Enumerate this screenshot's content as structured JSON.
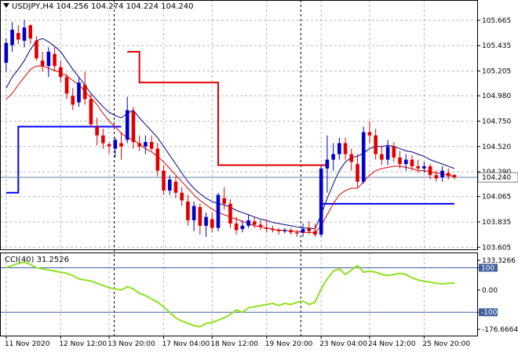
{
  "header": {
    "symbol": "USDJPY,H4",
    "open": "104.256",
    "high": "104.274",
    "low": "104.224",
    "close": "104.240"
  },
  "colors": {
    "bull_candle": "#0000c8",
    "bear_candle": "#e00000",
    "ma_fast": "#000080",
    "ma_slow": "#e00000",
    "upper_step": "#e00000",
    "lower_step": "#0000ff",
    "cci": "#90e020",
    "price_line": "#6080a0",
    "cci_level": "#4060a0",
    "grid": "#888888"
  },
  "chart_data": [
    {
      "type": "candlestick",
      "title": "USDJPY,H4",
      "ylim": [
        103.6,
        105.75
      ],
      "y_ticks": [
        "105.665",
        "105.435",
        "105.205",
        "104.980",
        "104.750",
        "104.520",
        "104.290",
        "104.065",
        "103.835",
        "103.605"
      ],
      "current_price": 104.24,
      "current_price_label": "104.240",
      "x_labels": [
        "11 Nov 2020",
        "12 Nov 12:00",
        "13 Nov 20:00",
        "17 Nov 04:00",
        "18 Nov 12:00",
        "19 Nov 20:00",
        "23 Nov 04:00",
        "24 Nov 12:00",
        "25 Nov 20:00"
      ],
      "candles": [
        {
          "o": 105.28,
          "h": 105.5,
          "l": 105.2,
          "c": 105.46
        },
        {
          "o": 105.44,
          "h": 105.65,
          "l": 105.38,
          "c": 105.58
        },
        {
          "o": 105.55,
          "h": 105.62,
          "l": 105.45,
          "c": 105.49
        },
        {
          "o": 105.48,
          "h": 105.67,
          "l": 105.42,
          "c": 105.6
        },
        {
          "o": 105.62,
          "h": 105.63,
          "l": 105.45,
          "c": 105.5
        },
        {
          "o": 105.48,
          "h": 105.52,
          "l": 105.3,
          "c": 105.32
        },
        {
          "o": 105.3,
          "h": 105.38,
          "l": 105.2,
          "c": 105.25
        },
        {
          "o": 105.25,
          "h": 105.42,
          "l": 105.15,
          "c": 105.38
        },
        {
          "o": 105.36,
          "h": 105.42,
          "l": 105.2,
          "c": 105.25
        },
        {
          "o": 105.24,
          "h": 105.3,
          "l": 105.1,
          "c": 105.15
        },
        {
          "o": 105.15,
          "h": 105.18,
          "l": 104.95,
          "c": 105.0
        },
        {
          "o": 104.98,
          "h": 105.05,
          "l": 104.85,
          "c": 104.9
        },
        {
          "o": 104.92,
          "h": 105.14,
          "l": 104.88,
          "c": 105.1
        },
        {
          "o": 105.08,
          "h": 105.2,
          "l": 104.9,
          "c": 104.95
        },
        {
          "o": 104.95,
          "h": 105.0,
          "l": 104.7,
          "c": 104.72
        },
        {
          "o": 104.7,
          "h": 104.78,
          "l": 104.53,
          "c": 104.62
        },
        {
          "o": 104.62,
          "h": 104.68,
          "l": 104.5,
          "c": 104.55
        },
        {
          "o": 104.54,
          "h": 104.56,
          "l": 104.45,
          "c": 104.52
        },
        {
          "o": 104.5,
          "h": 104.6,
          "l": 104.42,
          "c": 104.58
        },
        {
          "o": 104.55,
          "h": 104.65,
          "l": 104.4,
          "c": 104.52
        },
        {
          "o": 104.58,
          "h": 104.97,
          "l": 104.55,
          "c": 104.85
        },
        {
          "o": 104.84,
          "h": 104.88,
          "l": 104.5,
          "c": 104.56
        },
        {
          "o": 104.55,
          "h": 104.62,
          "l": 104.48,
          "c": 104.52
        },
        {
          "o": 104.52,
          "h": 104.62,
          "l": 104.45,
          "c": 104.56
        },
        {
          "o": 104.56,
          "h": 104.62,
          "l": 104.48,
          "c": 104.5
        },
        {
          "o": 104.5,
          "h": 104.55,
          "l": 104.25,
          "c": 104.3
        },
        {
          "o": 104.3,
          "h": 104.35,
          "l": 104.08,
          "c": 104.12
        },
        {
          "o": 104.12,
          "h": 104.26,
          "l": 104.08,
          "c": 104.22
        },
        {
          "o": 104.2,
          "h": 104.25,
          "l": 104.05,
          "c": 104.1
        },
        {
          "o": 104.1,
          "h": 104.15,
          "l": 103.98,
          "c": 104.03
        },
        {
          "o": 104.02,
          "h": 104.08,
          "l": 103.8,
          "c": 103.85
        },
        {
          "o": 103.85,
          "h": 104.02,
          "l": 103.75,
          "c": 103.98
        },
        {
          "o": 103.97,
          "h": 104.0,
          "l": 103.72,
          "c": 103.8
        },
        {
          "o": 103.8,
          "h": 103.92,
          "l": 103.7,
          "c": 103.88
        },
        {
          "o": 103.86,
          "h": 103.92,
          "l": 103.74,
          "c": 103.78
        },
        {
          "o": 103.78,
          "h": 104.1,
          "l": 103.75,
          "c": 104.08
        },
        {
          "o": 104.05,
          "h": 104.15,
          "l": 103.95,
          "c": 104.0
        },
        {
          "o": 104.0,
          "h": 104.04,
          "l": 103.78,
          "c": 103.82
        },
        {
          "o": 103.82,
          "h": 103.88,
          "l": 103.72,
          "c": 103.76
        },
        {
          "o": 103.77,
          "h": 103.85,
          "l": 103.74,
          "c": 103.8
        },
        {
          "o": 103.8,
          "h": 103.9,
          "l": 103.78,
          "c": 103.85
        },
        {
          "o": 103.84,
          "h": 103.88,
          "l": 103.78,
          "c": 103.81
        },
        {
          "o": 103.81,
          "h": 103.85,
          "l": 103.76,
          "c": 103.79
        },
        {
          "o": 103.78,
          "h": 103.85,
          "l": 103.74,
          "c": 103.77
        },
        {
          "o": 103.77,
          "h": 103.8,
          "l": 103.74,
          "c": 103.76
        },
        {
          "o": 103.76,
          "h": 103.78,
          "l": 103.72,
          "c": 103.75
        },
        {
          "o": 103.75,
          "h": 103.78,
          "l": 103.73,
          "c": 103.76
        },
        {
          "o": 103.76,
          "h": 103.78,
          "l": 103.72,
          "c": 103.74
        },
        {
          "o": 103.74,
          "h": 103.76,
          "l": 103.7,
          "c": 103.73
        },
        {
          "o": 103.74,
          "h": 103.82,
          "l": 103.7,
          "c": 103.77
        },
        {
          "o": 103.78,
          "h": 103.84,
          "l": 103.72,
          "c": 103.75
        },
        {
          "o": 103.75,
          "h": 103.82,
          "l": 103.7,
          "c": 103.72
        },
        {
          "o": 103.72,
          "h": 104.35,
          "l": 103.7,
          "c": 104.32
        },
        {
          "o": 104.32,
          "h": 104.62,
          "l": 104.1,
          "c": 104.4
        },
        {
          "o": 104.4,
          "h": 104.55,
          "l": 104.3,
          "c": 104.45
        },
        {
          "o": 104.45,
          "h": 104.6,
          "l": 104.4,
          "c": 104.55
        },
        {
          "o": 104.55,
          "h": 104.6,
          "l": 104.4,
          "c": 104.45
        },
        {
          "o": 104.45,
          "h": 104.5,
          "l": 104.3,
          "c": 104.38
        },
        {
          "o": 104.36,
          "h": 104.45,
          "l": 104.15,
          "c": 104.2
        },
        {
          "o": 104.2,
          "h": 104.7,
          "l": 104.18,
          "c": 104.65
        },
        {
          "o": 104.65,
          "h": 104.75,
          "l": 104.55,
          "c": 104.62
        },
        {
          "o": 104.62,
          "h": 104.68,
          "l": 104.4,
          "c": 104.45
        },
        {
          "o": 104.45,
          "h": 104.52,
          "l": 104.35,
          "c": 104.4
        },
        {
          "o": 104.4,
          "h": 104.58,
          "l": 104.35,
          "c": 104.52
        },
        {
          "o": 104.52,
          "h": 104.56,
          "l": 104.38,
          "c": 104.42
        },
        {
          "o": 104.42,
          "h": 104.48,
          "l": 104.32,
          "c": 104.36
        },
        {
          "o": 104.36,
          "h": 104.45,
          "l": 104.3,
          "c": 104.4
        },
        {
          "o": 104.4,
          "h": 104.44,
          "l": 104.3,
          "c": 104.34
        },
        {
          "o": 104.34,
          "h": 104.4,
          "l": 104.28,
          "c": 104.32
        },
        {
          "o": 104.32,
          "h": 104.38,
          "l": 104.28,
          "c": 104.34
        },
        {
          "o": 104.34,
          "h": 104.36,
          "l": 104.22,
          "c": 104.26
        },
        {
          "o": 104.26,
          "h": 104.3,
          "l": 104.2,
          "c": 104.23
        },
        {
          "o": 104.24,
          "h": 104.34,
          "l": 104.2,
          "c": 104.3
        },
        {
          "o": 104.28,
          "h": 104.32,
          "l": 104.22,
          "c": 104.25
        },
        {
          "o": 104.26,
          "h": 104.27,
          "l": 104.22,
          "c": 104.24
        }
      ],
      "ma_fast": [
        105.05,
        105.15,
        105.22,
        105.3,
        105.4,
        105.48,
        105.5,
        105.47,
        105.43,
        105.38,
        105.3,
        105.22,
        105.15,
        105.08,
        105.0,
        104.94,
        104.88,
        104.83,
        104.8,
        104.78,
        104.82,
        104.85,
        104.78,
        104.72,
        104.66,
        104.6,
        104.52,
        104.44,
        104.36,
        104.28,
        104.2,
        104.14,
        104.09,
        104.05,
        104.02,
        104.0,
        103.99,
        103.97,
        103.94,
        103.92,
        103.9,
        103.88,
        103.86,
        103.85,
        103.83,
        103.82,
        103.81,
        103.8,
        103.79,
        103.78,
        103.78,
        103.77,
        103.9,
        104.05,
        104.18,
        104.3,
        104.38,
        104.42,
        104.43,
        104.46,
        104.5,
        104.52,
        104.52,
        104.53,
        104.52,
        104.5,
        104.48,
        104.47,
        104.45,
        104.43,
        104.4,
        104.38,
        104.36,
        104.34,
        104.32
      ],
      "ma_slow": [
        104.95,
        105.0,
        105.08,
        105.15,
        105.22,
        105.25,
        105.25,
        105.23,
        105.21,
        105.19,
        105.16,
        105.12,
        105.08,
        105.02,
        104.96,
        104.9,
        104.82,
        104.75,
        104.7,
        104.64,
        104.6,
        104.58,
        104.54,
        104.5,
        104.47,
        104.43,
        104.38,
        104.32,
        104.26,
        104.2,
        104.14,
        104.08,
        104.03,
        103.99,
        103.95,
        103.92,
        103.9,
        103.88,
        103.86,
        103.84,
        103.82,
        103.8,
        103.79,
        103.78,
        103.77,
        103.76,
        103.76,
        103.75,
        103.75,
        103.74,
        103.74,
        103.74,
        103.8,
        103.9,
        104.0,
        104.08,
        104.12,
        104.14,
        104.14,
        104.2,
        104.26,
        104.3,
        104.32,
        104.33,
        104.34,
        104.34,
        104.33,
        104.32,
        104.3,
        104.3,
        104.29,
        104.28,
        104.27,
        104.26,
        104.25
      ],
      "upper_step": [
        {
          "from": 20,
          "to": 22,
          "y": 105.38
        },
        {
          "from": 22,
          "to": 25,
          "y": 105.1
        },
        {
          "from": 25,
          "to": 35,
          "y": 105.1
        },
        {
          "from": 35,
          "to": 45,
          "y": 104.35
        },
        {
          "from": 45,
          "to": 53,
          "y": 104.35
        }
      ],
      "lower_step": [
        {
          "from": 0,
          "to": 2,
          "y": 104.1
        },
        {
          "from": 2,
          "to": 19,
          "y": 104.7
        },
        {
          "from": 52,
          "to": 74,
          "y": 104.0
        }
      ]
    },
    {
      "type": "line",
      "title": "CCI(40) 31.2526",
      "ylim": [
        -176.6664,
        133.3266
      ],
      "y_ticks": [
        "133.3266",
        "100",
        "0.00",
        "-100",
        "-176.6664"
      ],
      "levels": [
        100,
        -100
      ],
      "series": [
        {
          "name": "CCI(40)",
          "values": [
            100,
            110,
            120,
            125,
            115,
            100,
            95,
            90,
            85,
            80,
            75,
            65,
            50,
            45,
            40,
            30,
            20,
            10,
            5,
            0,
            15,
            5,
            -15,
            -25,
            -40,
            -55,
            -75,
            -100,
            -125,
            -140,
            -150,
            -160,
            -165,
            -150,
            -145,
            -135,
            -125,
            -110,
            -90,
            -100,
            -80,
            -75,
            -70,
            -65,
            -60,
            -70,
            -60,
            -65,
            -55,
            -50,
            -65,
            -55,
            5,
            50,
            85,
            95,
            70,
            90,
            110,
            80,
            85,
            80,
            70,
            65,
            70,
            75,
            70,
            55,
            45,
            40,
            35,
            30,
            28,
            30,
            31
          ]
        }
      ]
    }
  ]
}
